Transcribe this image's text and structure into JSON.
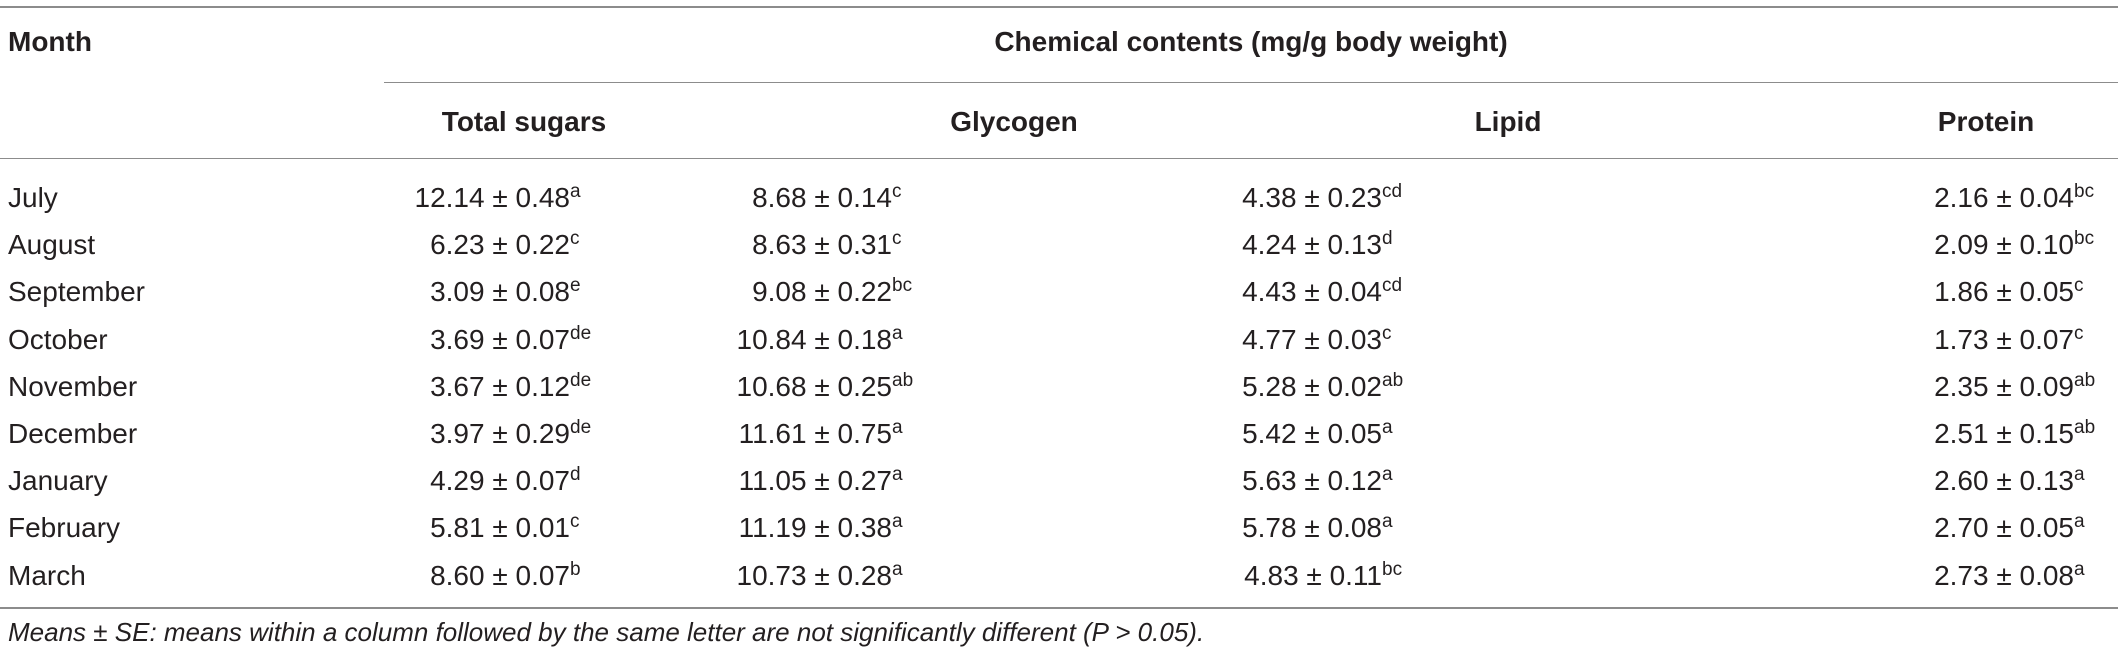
{
  "table": {
    "month_header": "Month",
    "group_header": "Chemical contents (mg/g body weight)",
    "columns": [
      "Total sugars",
      "Glycogen",
      "Lipid",
      "Protein"
    ],
    "rows": [
      {
        "month": "July",
        "cells": [
          {
            "v": "12.14 ± 0.48",
            "s": "a"
          },
          {
            "v": "8.68 ± 0.14",
            "s": "c"
          },
          {
            "v": "4.38 ± 0.23",
            "s": "cd"
          },
          {
            "v": "2.16 ± 0.04",
            "s": "bc"
          }
        ]
      },
      {
        "month": "August",
        "cells": [
          {
            "v": "6.23 ± 0.22",
            "s": "c"
          },
          {
            "v": "8.63 ± 0.31",
            "s": "c"
          },
          {
            "v": "4.24 ± 0.13",
            "s": "d"
          },
          {
            "v": "2.09 ± 0.10",
            "s": "bc"
          }
        ]
      },
      {
        "month": "September",
        "cells": [
          {
            "v": "3.09 ± 0.08",
            "s": "e"
          },
          {
            "v": "9.08 ± 0.22",
            "s": "bc"
          },
          {
            "v": "4.43 ± 0.04",
            "s": "cd"
          },
          {
            "v": "1.86 ± 0.05",
            "s": "c"
          }
        ]
      },
      {
        "month": "October",
        "cells": [
          {
            "v": "3.69 ± 0.07",
            "s": "de"
          },
          {
            "v": "10.84 ± 0.18",
            "s": "a"
          },
          {
            "v": "4.77 ± 0.03",
            "s": "c"
          },
          {
            "v": "1.73 ± 0.07",
            "s": "c"
          }
        ]
      },
      {
        "month": "November",
        "cells": [
          {
            "v": "3.67 ± 0.12",
            "s": "de"
          },
          {
            "v": "10.68 ± 0.25",
            "s": "ab"
          },
          {
            "v": "5.28 ± 0.02",
            "s": "ab"
          },
          {
            "v": "2.35 ± 0.09",
            "s": "ab"
          }
        ]
      },
      {
        "month": "December",
        "cells": [
          {
            "v": "3.97 ± 0.29",
            "s": "de"
          },
          {
            "v": "11.61 ± 0.75",
            "s": "a"
          },
          {
            "v": "5.42 ± 0.05",
            "s": "a"
          },
          {
            "v": "2.51 ± 0.15",
            "s": "ab"
          }
        ]
      },
      {
        "month": "January",
        "cells": [
          {
            "v": "4.29 ± 0.07",
            "s": "d"
          },
          {
            "v": "11.05 ± 0.27",
            "s": "a"
          },
          {
            "v": "5.63 ± 0.12",
            "s": "a"
          },
          {
            "v": "2.60 ± 0.13",
            "s": "a"
          }
        ]
      },
      {
        "month": "February",
        "cells": [
          {
            "v": "5.81 ± 0.01",
            "s": "c"
          },
          {
            "v": "11.19 ± 0.38",
            "s": "a"
          },
          {
            "v": "5.78 ± 0.08",
            "s": "a"
          },
          {
            "v": "2.70 ± 0.05",
            "s": "a"
          }
        ]
      },
      {
        "month": "March",
        "cells": [
          {
            "v": "8.60 ± 0.07",
            "s": "b"
          },
          {
            "v": "10.73 ± 0.28",
            "s": "a"
          },
          {
            "v": "4.83 ± 0.11",
            "s": "bc"
          },
          {
            "v": "2.73 ± 0.08",
            "s": "a"
          }
        ]
      }
    ]
  },
  "footnote": "Means ± SE: means within a column followed by the same letter are not significantly different (P > 0.05)."
}
